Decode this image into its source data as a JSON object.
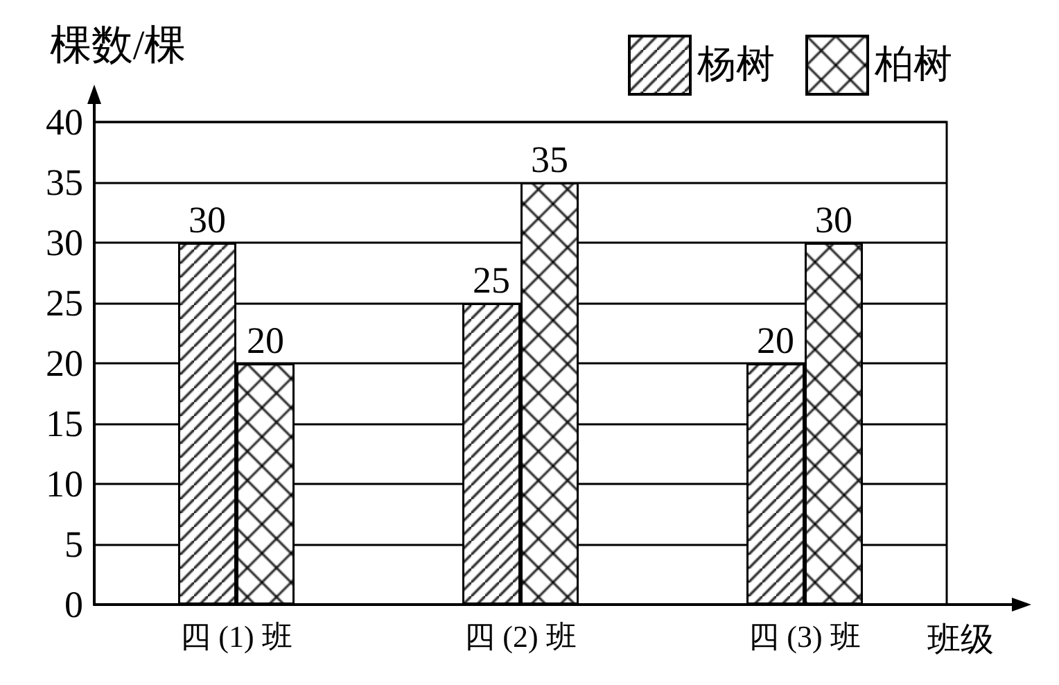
{
  "chart_data": {
    "type": "bar",
    "xlabel": "班级",
    "ylabel": "棵数/棵",
    "categories": [
      "四 (1) 班",
      "四 (2) 班",
      "四 (3) 班"
    ],
    "series": [
      {
        "name": "杨树",
        "color": "#000000",
        "values": [
          30,
          25,
          20
        ]
      },
      {
        "name": "柏树",
        "color": "#000000",
        "values": [
          20,
          35,
          30
        ]
      }
    ],
    "ylim": [
      0,
      40
    ],
    "yticks": [
      0,
      5,
      10,
      15,
      20,
      25,
      30,
      35,
      40
    ],
    "grid": "y",
    "legend": "top right",
    "data_labels": true
  }
}
